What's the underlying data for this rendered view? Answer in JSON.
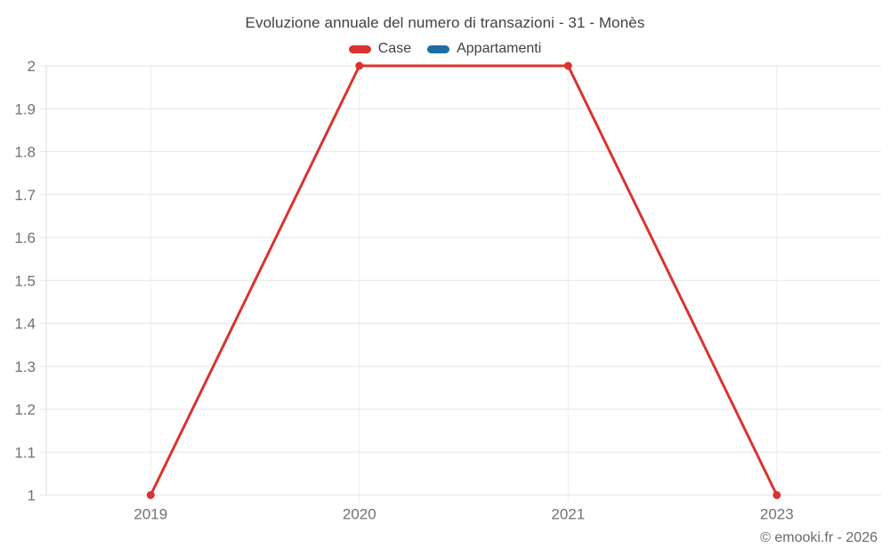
{
  "header": {
    "title": "Evoluzione annuale del numero di transazioni - 31 - Monès"
  },
  "chart_data": {
    "type": "line",
    "title": "Evoluzione annuale del numero di transazioni - 31 - Monès",
    "categories": [
      "2019",
      "2020",
      "2021",
      "2023"
    ],
    "series": [
      {
        "name": "Case",
        "color": "#d9342f",
        "values": [
          1,
          2,
          2,
          1
        ]
      },
      {
        "name": "Appartamenti",
        "color": "#1d6fa3",
        "values": []
      }
    ],
    "xlabel": "",
    "ylabel": "",
    "ylim": [
      1,
      2
    ],
    "ytick_step": 0.1,
    "ytick_labels": [
      "1",
      "1.1",
      "1.2",
      "1.3",
      "1.4",
      "1.5",
      "1.6",
      "1.7",
      "1.8",
      "1.9",
      "2"
    ],
    "grid": true,
    "legend_position": "top",
    "colors": {
      "grid_horizontal": "#e6e6e6",
      "grid_vertical": "#ededed",
      "axis_line": "#dcdcdc"
    }
  },
  "footer": {
    "copyright": "© emooki.fr - 2026"
  }
}
